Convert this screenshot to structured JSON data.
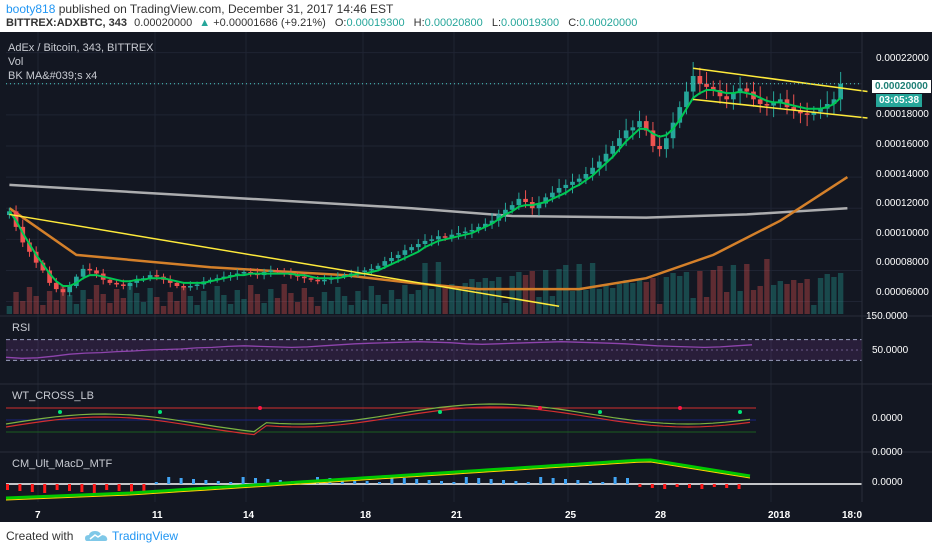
{
  "header": {
    "username": "booty818",
    "published_text": "published on TradingView.com, December 31, 2017 14:46 EST",
    "symbol": "BITTREX:ADXBTC, 343",
    "price": "0.00020000",
    "change": "+0.00001686 (+9.21%)",
    "o_label": "O:",
    "o_value": "0.00019300",
    "h_label": "H:",
    "h_value": "0.00020800",
    "l_label": "L:",
    "l_value": "0.00019300",
    "c_label": "C:",
    "c_value": "0.00020000"
  },
  "main_pane": {
    "title": "AdEx / Bitcoin, 343, BITTREX",
    "vol_label": "Vol",
    "ma_label": "BK MA&#039;s x4",
    "price_tag": "0.00020000",
    "countdown": "03:05:38",
    "y_ticks": [
      "0.00022000",
      "0.00020000",
      "0.00018000",
      "0.00016000",
      "0.00014000",
      "0.00012000",
      "0.00010000",
      "0.00008000",
      "0.00006000"
    ]
  },
  "rsi_pane": {
    "title": "RSI",
    "y_ticks": [
      "150.0000",
      "50.0000"
    ]
  },
  "wt_pane": {
    "title": "WT_CROSS_LB",
    "y_ticks": [
      "0.0000"
    ]
  },
  "macd_pane": {
    "title": "CM_Ult_MacD_MTF",
    "y_ticks": [
      "0.0000",
      "0.0000"
    ]
  },
  "x_axis": [
    "7",
    "11",
    "14",
    "18",
    "21",
    "25",
    "28",
    "2018",
    "18:0"
  ],
  "footer": {
    "created_with": "Created with",
    "brand": "TradingView"
  },
  "colors": {
    "background": "#131722",
    "up": "#26a69a",
    "down": "#ef5350",
    "ma_fast": "#00c853",
    "ma_mid": "#d4802a",
    "ma_slow": "#c8c8c8",
    "trendline": "#ffeb3b",
    "rsi": "#8e44ad",
    "wt_red": "#d32f2f",
    "macd_green": "#00c800",
    "macd_red": "#ff1a1a",
    "accent_blue": "#2196f3"
  },
  "chart_data": {
    "type": "candlestick",
    "symbol": "BITTREX:ADXBTC",
    "interval": "343",
    "closes": [
      0.000118,
      0.000108,
      9.8e-05,
      9.2e-05,
      8.5e-05,
      8e-05,
      7.2e-05,
      6.8e-05,
      6.6e-05,
      7e-05,
      7.6e-05,
      8.1e-05,
      8e-05,
      7.8e-05,
      7.4e-05,
      7.2e-05,
      7.1e-05,
      7e-05,
      7.2e-05,
      7.4e-05,
      7.5e-05,
      7.7e-05,
      7.6e-05,
      7.4e-05,
      7.2e-05,
      7e-05,
      6.9e-05,
      7e-05,
      7.1e-05,
      7.3e-05,
      7.4e-05,
      7.5e-05,
      7.6e-05,
      7.7e-05,
      7.8e-05,
      7.9e-05,
      7.8e-05,
      7.7e-05,
      7.9e-05,
      8e-05,
      7.9e-05,
      7.8e-05,
      7.7e-05,
      7.6e-05,
      7.5e-05,
      7.4e-05,
      7.3e-05,
      7.4e-05,
      7.5e-05,
      7.6e-05,
      7.7e-05,
      7.8e-05,
      7.9e-05,
      8e-05,
      8.1e-05,
      8.3e-05,
      8.6e-05,
      8.8e-05,
      9e-05,
      9.3e-05,
      9.5e-05,
      9.7e-05,
      9.9e-05,
      0.0001,
      0.000102,
      0.000101,
      0.000103,
      0.000104,
      0.000105,
      0.000106,
      0.000108,
      0.00011,
      0.000112,
      0.000116,
      0.000119,
      0.000122,
      0.000126,
      0.000124,
      0.00012,
      0.000123,
      0.000127,
      0.00013,
      0.000133,
      0.000135,
      0.000137,
      0.000139,
      0.000142,
      0.000146,
      0.00015,
      0.000155,
      0.00016,
      0.000165,
      0.00017,
      0.000172,
      0.000176,
      0.00017,
      0.00016,
      0.000158,
      0.000165,
      0.000175,
      0.000185,
      0.000195,
      0.000205,
      0.0002,
      0.000198,
      0.000196,
      0.000192,
      0.00019,
      0.000194,
      0.000197,
      0.000195,
      0.00019,
      0.000187,
      0.000186,
      0.000188,
      0.00019,
      0.000185,
      0.000183,
      0.000181,
      0.00018,
      0.000182,
      0.000184,
      0.000187,
      0.00019,
      0.0002
    ],
    "ma_fast": [
      0.000118,
      0.000112,
      0.000104,
      9.7e-05,
      9e-05,
      8.4e-05,
      7.8e-05,
      7.3e-05,
      7e-05,
      7e-05,
      7.2e-05,
      7.5e-05,
      7.7e-05,
      7.7e-05,
      7.6e-05,
      7.5e-05,
      7.4e-05,
      7.3e-05,
      7.3e-05,
      7.4e-05,
      7.4e-05,
      7.5e-05,
      7.5e-05,
      7.5e-05,
      7.4e-05,
      7.3e-05,
      7.2e-05,
      7.2e-05,
      7.2e-05,
      7.2e-05,
      7.3e-05,
      7.4e-05,
      7.5e-05,
      7.6e-05,
      7.7e-05,
      7.7e-05,
      7.8e-05,
      7.8e-05,
      7.8e-05,
      7.8e-05,
      7.8e-05,
      7.8e-05,
      7.8e-05,
      7.7e-05,
      7.7e-05,
      7.6e-05,
      7.5e-05,
      7.5e-05,
      7.5e-05,
      7.5e-05,
      7.6e-05,
      7.7e-05,
      7.8e-05,
      7.8e-05,
      7.9e-05,
      8e-05,
      8.2e-05,
      8.4e-05,
      8.6e-05,
      8.8e-05,
      9e-05,
      9.2e-05,
      9.5e-05,
      9.7e-05,
      9.9e-05,
      0.0001,
      0.000101,
      0.000102,
      0.000103,
      0.000104,
      0.000106,
      0.000108,
      0.00011,
      0.000113,
      0.000116,
      0.000118,
      0.000121,
      0.000122,
      0.000122,
      0.000123,
      0.000124,
      0.000126,
      0.000128,
      0.00013,
      0.000133,
      0.000135,
      0.000138,
      0.000141,
      0.000145,
      0.000149,
      0.000153,
      0.000158,
      0.000163,
      0.000167,
      0.000171,
      0.000171,
      0.000168,
      0.000166,
      0.000167,
      0.000171,
      0.000177,
      0.000184,
      0.000191,
      0.000194,
      0.000196,
      0.000196,
      0.000195,
      0.000194,
      0.000194,
      0.000195,
      0.000194,
      0.000193,
      0.000191,
      0.000189,
      0.000188,
      0.000188,
      0.000187,
      0.000186,
      0.000185,
      0.000184,
      0.000184,
      0.000184,
      0.000185,
      0.000187,
      0.000191
    ],
    "ma_mid_points": [
      [
        0,
        0.00012
      ],
      [
        10,
        9e-05
      ],
      [
        30,
        8.2e-05
      ],
      [
        50,
        7.7e-05
      ],
      [
        60,
        7.2e-05
      ],
      [
        70,
        6.8e-05
      ],
      [
        85,
        6.8e-05
      ],
      [
        95,
        7.5e-05
      ],
      [
        105,
        9e-05
      ],
      [
        115,
        0.000112
      ],
      [
        125,
        0.00014
      ]
    ],
    "ma_slow_points": [
      [
        0,
        0.000135
      ],
      [
        20,
        0.00013
      ],
      [
        40,
        0.000125
      ],
      [
        60,
        0.00012
      ],
      [
        75,
        0.000115
      ],
      [
        95,
        0.000114
      ],
      [
        110,
        0.000116
      ],
      [
        125,
        0.00012
      ]
    ],
    "trendlines": [
      {
        "from": [
          0,
          0.000116
        ],
        "to": [
          82,
          5.7e-05
        ]
      },
      {
        "from": [
          102,
          0.00021
        ],
        "to": [
          128,
          0.000195
        ]
      },
      {
        "from": [
          102,
          0.00019
        ],
        "to": [
          128,
          0.000178
        ]
      }
    ],
    "ylim": [
      5.2e-05,
      0.000232
    ],
    "y_ticks": [
      0.00022,
      0.0002,
      0.00018,
      0.00016,
      0.00014,
      0.00012,
      0.0001,
      8e-05,
      6e-05
    ],
    "x_tick_labels": [
      "7",
      "11",
      "14",
      "18",
      "21",
      "25",
      "28",
      "2018",
      "18:0"
    ],
    "rsi_values": [
      36,
      34,
      35,
      38,
      42,
      44,
      45,
      47,
      48,
      50,
      51,
      52,
      54,
      55,
      57,
      58,
      57,
      56,
      55,
      56,
      58,
      60,
      62,
      63,
      64,
      65,
      66,
      65,
      64,
      62,
      61,
      62,
      63,
      64,
      65,
      66,
      65,
      64,
      63,
      62,
      60,
      58,
      57,
      56,
      55,
      56,
      58,
      60
    ],
    "rsi_levels": [
      70,
      30
    ]
  }
}
